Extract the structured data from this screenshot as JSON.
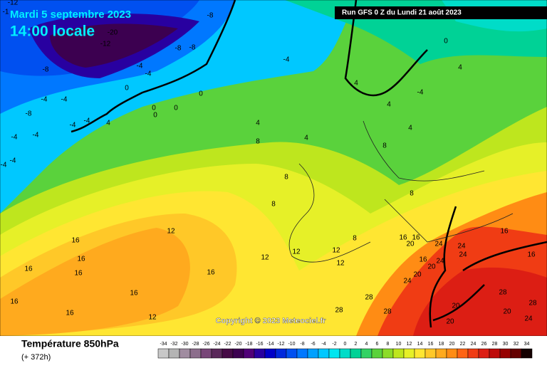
{
  "header": {
    "date": "Mardi 5 septembre 2023",
    "time": "14:00 locale",
    "run": "Run GFS 0 Z du Lundi 21 août 2023"
  },
  "footer": {
    "variable": "Température 850hPa",
    "lead": "(+ 372h)",
    "copyright": "Copyright © 2023 Meteociel.fr"
  },
  "contour_labels": [
    "-12",
    "-1",
    "-8",
    "-8",
    "-20",
    "-12",
    "-8",
    "-8",
    "-4",
    "-4",
    "-4",
    "-4",
    "-8",
    "-4",
    "0",
    "0",
    "-4",
    "-4",
    "-4",
    "0",
    "0",
    "4",
    "4",
    "4",
    "4",
    "4",
    "4",
    "8",
    "8",
    "8",
    "8",
    "8",
    "8",
    "12",
    "12",
    "12",
    "12",
    "12",
    "16",
    "16",
    "16",
    "16",
    "16",
    "16",
    "16",
    "20",
    "20",
    "20",
    "16",
    "16",
    "12",
    "24",
    "24",
    "24",
    "24",
    "24",
    "28",
    "28",
    "28",
    "28",
    "20",
    "20",
    "20",
    "24",
    "28",
    "16",
    "16",
    "16",
    "16",
    "-4",
    "0",
    "0",
    "4",
    "-4",
    "-4",
    "-4"
  ],
  "scale": {
    "values": [
      -34,
      -32,
      -30,
      -28,
      -26,
      -24,
      -22,
      -20,
      -18,
      -16,
      -14,
      -12,
      -10,
      -8,
      -6,
      -4,
      -2,
      0,
      2,
      4,
      6,
      8,
      10,
      12,
      14,
      16,
      18,
      20,
      22,
      24,
      26,
      28,
      30,
      32,
      34
    ],
    "colors": [
      "#c8c8c8",
      "#b4b4b4",
      "#a08ca0",
      "#8c6e8c",
      "#784678",
      "#5a285a",
      "#460a46",
      "#3c0050",
      "#500078",
      "#2800a0",
      "#0000c8",
      "#0028dc",
      "#0050f0",
      "#0078ff",
      "#00a0ff",
      "#00c8ff",
      "#00e6f0",
      "#00dcc8",
      "#00d296",
      "#32d264",
      "#5ad23c",
      "#8cdc28",
      "#bee61e",
      "#e6f028",
      "#ffe632",
      "#ffc828",
      "#ffaa1e",
      "#ff8c14",
      "#ff6414",
      "#f03c14",
      "#dc1e14",
      "#be0a0a",
      "#960000",
      "#640000",
      "#140000"
    ]
  }
}
